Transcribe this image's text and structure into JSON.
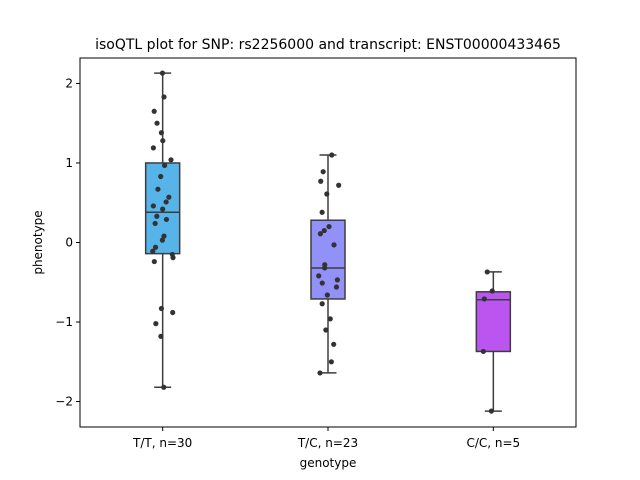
{
  "chart_data": {
    "type": "box",
    "title": "isoQTL plot for SNP: rs2256000 and transcript: ENST00000433465",
    "xlabel": "genotype",
    "ylabel": "phenotype",
    "ylim": [
      -2.32,
      2.32
    ],
    "yticks": [
      -2,
      -1,
      0,
      1,
      2
    ],
    "ytick_labels": [
      "−2",
      "−1",
      "0",
      "1",
      "2"
    ],
    "grid": false,
    "categories": [
      "T/T, n=30",
      "T/C, n=23",
      "C/C, n=5"
    ],
    "colors": [
      "#56b4e9",
      "#9191f7",
      "#bb55f0"
    ],
    "boxes": [
      {
        "category": "T/T, n=30",
        "whisker_low": -1.82,
        "q1": -0.14,
        "median": 0.38,
        "q3": 1.0,
        "whisker_high": 2.13
      },
      {
        "category": "T/C, n=23",
        "whisker_low": -1.64,
        "q1": -0.71,
        "median": -0.32,
        "q3": 0.28,
        "whisker_high": 1.1
      },
      {
        "category": "C/C, n=5",
        "whisker_low": -2.12,
        "q1": -1.37,
        "median": -0.72,
        "q3": -0.62,
        "whisker_high": -0.37
      }
    ],
    "points": [
      [
        2.13,
        1.83,
        1.65,
        1.5,
        1.38,
        1.28,
        1.19,
        1.04,
        0.97,
        0.83,
        0.67,
        0.57,
        0.51,
        0.46,
        0.42,
        0.33,
        0.29,
        0.24,
        0.08,
        0.03,
        -0.06,
        -0.11,
        -0.15,
        -0.19,
        -0.24,
        -0.83,
        -0.88,
        -1.02,
        -1.18,
        -1.82
      ],
      [
        1.1,
        0.89,
        0.77,
        0.72,
        0.61,
        0.38,
        0.2,
        0.15,
        0.11,
        -0.03,
        -0.28,
        -0.32,
        -0.42,
        -0.47,
        -0.51,
        -0.56,
        -0.66,
        -0.77,
        -0.96,
        -1.1,
        -1.28,
        -1.5,
        -1.64
      ],
      [
        -0.37,
        -0.61,
        -0.71,
        -1.37,
        -2.12
      ]
    ]
  }
}
